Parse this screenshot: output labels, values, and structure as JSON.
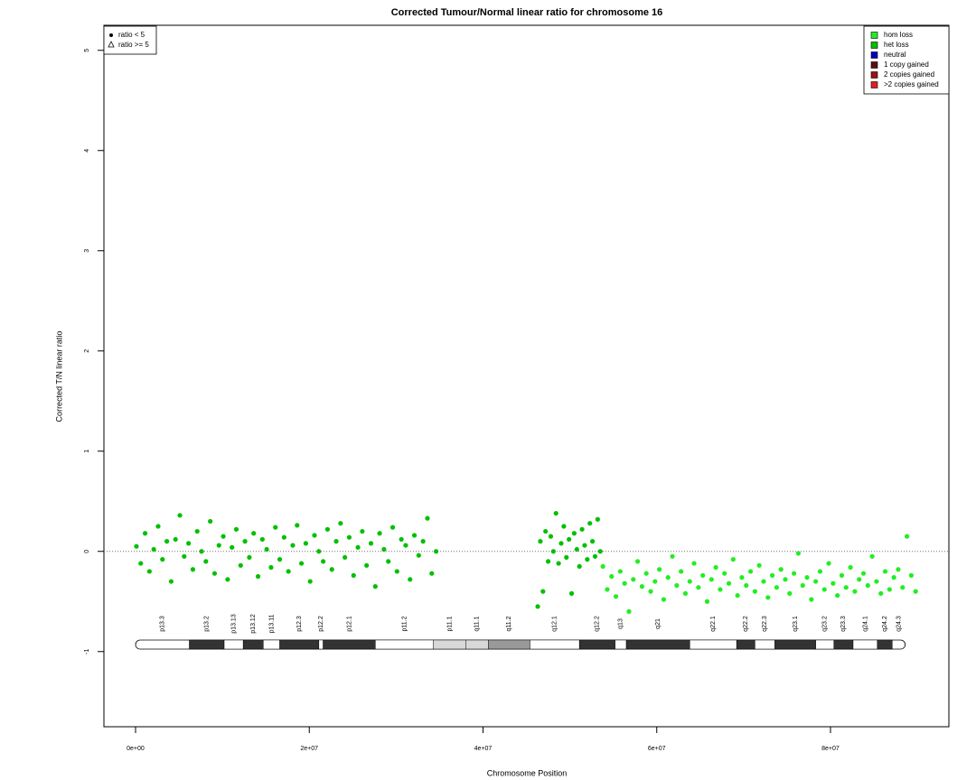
{
  "chart_data": {
    "type": "scatter",
    "title": "Corrected Tumour/Normal linear ratio for chromosome  16",
    "x_label": "Chromosome Position",
    "y_label": "Corrected T/N linear ratio",
    "xlim": [
      -3640000,
      93630000
    ],
    "ylim": [
      -1.75,
      5.25
    ],
    "xticks": [
      {
        "value": 0,
        "label": "0e+00"
      },
      {
        "value": 20000000,
        "label": "2e+07"
      },
      {
        "value": 40000000,
        "label": "4e+07"
      },
      {
        "value": 60000000,
        "label": "6e+07"
      },
      {
        "value": 80000000,
        "label": "8e+07"
      }
    ],
    "yticks": [
      -1,
      0,
      1,
      2,
      3,
      4,
      5
    ],
    "hline": 0,
    "legend_position": "top-right",
    "shape_legend": [
      "ratio < 5",
      "ratio >= 5"
    ],
    "series": [
      {
        "name": "hom loss",
        "color": "#22ee22",
        "x": [
          53800000,
          54300000,
          54800000,
          55300000,
          55800000,
          56300000,
          56800000,
          57300000,
          57800000,
          58300000,
          58800000,
          59300000,
          59800000,
          60300000,
          60800000,
          61300000,
          61800000,
          62300000,
          62800000,
          63300000,
          63800000,
          64300000,
          64800000,
          65300000,
          65800000,
          66300000,
          66800000,
          67300000,
          67800000,
          68300000,
          68800000,
          69300000,
          69800000,
          70300000,
          70800000,
          71300000,
          71800000,
          72300000,
          72800000,
          73300000,
          73800000,
          74300000,
          74800000,
          75300000,
          75800000,
          76300000,
          76800000,
          77300000,
          77800000,
          78300000,
          78800000,
          79300000,
          79800000,
          80300000,
          80800000,
          81300000,
          81800000,
          82300000,
          82800000,
          83300000,
          83800000,
          84300000,
          84800000,
          85300000,
          85800000,
          86300000,
          86800000,
          87300000,
          87800000,
          88300000,
          88800000,
          89300000,
          89800000
        ],
        "values": [
          -0.15,
          -0.38,
          -0.25,
          -0.45,
          -0.2,
          -0.32,
          -0.6,
          -0.28,
          -0.1,
          -0.35,
          -0.22,
          -0.4,
          -0.3,
          -0.18,
          -0.48,
          -0.26,
          -0.05,
          -0.34,
          -0.2,
          -0.42,
          -0.3,
          -0.12,
          -0.36,
          -0.24,
          -0.5,
          -0.28,
          -0.16,
          -0.38,
          -0.22,
          -0.32,
          -0.08,
          -0.44,
          -0.26,
          -0.34,
          -0.2,
          -0.4,
          -0.14,
          -0.3,
          -0.46,
          -0.24,
          -0.36,
          -0.18,
          -0.28,
          -0.42,
          -0.22,
          -0.02,
          -0.34,
          -0.26,
          -0.48,
          -0.3,
          -0.2,
          -0.38,
          -0.12,
          -0.32,
          -0.44,
          -0.24,
          -0.36,
          -0.16,
          -0.4,
          -0.28,
          -0.22,
          -0.34,
          -0.05,
          -0.3,
          -0.42,
          -0.2,
          -0.38,
          -0.26,
          -0.18,
          -0.36,
          0.15,
          -0.24,
          -0.4
        ]
      },
      {
        "name": "het loss",
        "color": "#00c000",
        "x": [
          100000,
          600000,
          1100000,
          1600000,
          2100000,
          2600000,
          3100000,
          3600000,
          4100000,
          4600000,
          5100000,
          5600000,
          6100000,
          6600000,
          7100000,
          7600000,
          8100000,
          8600000,
          9100000,
          9600000,
          10100000,
          10600000,
          11100000,
          11600000,
          12100000,
          12600000,
          13100000,
          13600000,
          14100000,
          14600000,
          15100000,
          15600000,
          16100000,
          16600000,
          17100000,
          17600000,
          18100000,
          18600000,
          19100000,
          19600000,
          20100000,
          20600000,
          21100000,
          21600000,
          22100000,
          22600000,
          23100000,
          23600000,
          24100000,
          24600000,
          25100000,
          25600000,
          26100000,
          26600000,
          27100000,
          27600000,
          28100000,
          28600000,
          29100000,
          29600000,
          30100000,
          30600000,
          31100000,
          31600000,
          32100000,
          32600000,
          33100000,
          33600000,
          34100000,
          34600000,
          46300000,
          46600000,
          46900000,
          47200000,
          47500000,
          47800000,
          48100000,
          48400000,
          48700000,
          49000000,
          49300000,
          49600000,
          49900000,
          50200000,
          50500000,
          50800000,
          51100000,
          51400000,
          51700000,
          52000000,
          52300000,
          52600000,
          52900000,
          53200000,
          53500000
        ],
        "values": [
          0.05,
          -0.12,
          0.18,
          -0.2,
          0.02,
          0.25,
          -0.08,
          0.1,
          -0.3,
          0.12,
          0.36,
          -0.05,
          0.08,
          -0.18,
          0.2,
          0.0,
          -0.1,
          0.3,
          -0.22,
          0.06,
          0.15,
          -0.28,
          0.04,
          0.22,
          -0.14,
          0.1,
          -0.06,
          0.18,
          -0.25,
          0.12,
          0.02,
          -0.16,
          0.24,
          -0.08,
          0.14,
          -0.2,
          0.06,
          0.26,
          -0.12,
          0.08,
          -0.3,
          0.16,
          0.0,
          -0.1,
          0.22,
          -0.18,
          0.1,
          0.28,
          -0.06,
          0.14,
          -0.24,
          0.04,
          0.2,
          -0.14,
          0.08,
          -0.35,
          0.18,
          0.02,
          -0.1,
          0.24,
          -0.2,
          0.12,
          0.06,
          -0.28,
          0.16,
          -0.04,
          0.1,
          0.33,
          -0.22,
          0.0,
          -0.55,
          0.1,
          -0.4,
          0.2,
          -0.1,
          0.15,
          0.0,
          0.38,
          -0.12,
          0.08,
          0.25,
          -0.06,
          0.12,
          -0.42,
          0.18,
          0.02,
          -0.15,
          0.22,
          0.06,
          -0.08,
          0.28,
          0.1,
          -0.05,
          0.32,
          0.0
        ]
      },
      {
        "name": "neutral",
        "color": "#0000bb",
        "x": [],
        "values": []
      },
      {
        "name": "1 copy gained",
        "color": "#5a1010",
        "x": [],
        "values": []
      },
      {
        "name": "2 copies gained",
        "color": "#a01010",
        "x": [],
        "values": []
      },
      {
        "name": ">2 copies gained",
        "color": "#e02020",
        "x": [],
        "values": []
      }
    ],
    "ideogram_y": -0.93,
    "bands": [
      {
        "label": "p13.3",
        "start": 0,
        "end": 6200000,
        "color": "#ffffff"
      },
      {
        "label": "p13.2",
        "start": 6200000,
        "end": 10200000,
        "color": "#333333"
      },
      {
        "label": "p13.13",
        "start": 10200000,
        "end": 12400000,
        "color": "#ffffff"
      },
      {
        "label": "p13.12",
        "start": 12400000,
        "end": 14700000,
        "color": "#333333"
      },
      {
        "label": "p13.11",
        "start": 14700000,
        "end": 16600000,
        "color": "#ffffff"
      },
      {
        "label": "p12.3",
        "start": 16600000,
        "end": 21100000,
        "color": "#333333"
      },
      {
        "label": "p12.2",
        "start": 21100000,
        "end": 21600000,
        "color": "#ffffff"
      },
      {
        "label": "p12.1",
        "start": 21600000,
        "end": 27600000,
        "color": "#333333"
      },
      {
        "label": "p11.2",
        "start": 27600000,
        "end": 34300000,
        "color": "#ffffff"
      },
      {
        "label": "p11.1",
        "start": 34300000,
        "end": 38000000,
        "color": "#d8d8d8"
      },
      {
        "label": "q11.1",
        "start": 38000000,
        "end": 40600000,
        "color": "#d8d8d8"
      },
      {
        "label": "q11.2",
        "start": 40600000,
        "end": 45400000,
        "color": "#999999"
      },
      {
        "label": "q12.1",
        "start": 45400000,
        "end": 51100000,
        "color": "#ffffff"
      },
      {
        "label": "q12.2",
        "start": 51100000,
        "end": 55200000,
        "color": "#333333"
      },
      {
        "label": "q13",
        "start": 55200000,
        "end": 56500000,
        "color": "#ffffff"
      },
      {
        "label": "q21",
        "start": 56500000,
        "end": 63800000,
        "color": "#333333"
      },
      {
        "label": "q22.1",
        "start": 63800000,
        "end": 69200000,
        "color": "#ffffff"
      },
      {
        "label": "q22.2",
        "start": 69200000,
        "end": 71300000,
        "color": "#333333"
      },
      {
        "label": "q22.3",
        "start": 71300000,
        "end": 73600000,
        "color": "#ffffff"
      },
      {
        "label": "q23.1",
        "start": 73600000,
        "end": 78300000,
        "color": "#333333"
      },
      {
        "label": "q23.2",
        "start": 78300000,
        "end": 80400000,
        "color": "#ffffff"
      },
      {
        "label": "q23.3",
        "start": 80400000,
        "end": 82600000,
        "color": "#333333"
      },
      {
        "label": "q24.1",
        "start": 82600000,
        "end": 85400000,
        "color": "#ffffff"
      },
      {
        "label": "q24.2",
        "start": 85400000,
        "end": 87100000,
        "color": "#333333"
      },
      {
        "label": "q24.3",
        "start": 87100000,
        "end": 88600000,
        "color": "#ffffff"
      }
    ]
  }
}
